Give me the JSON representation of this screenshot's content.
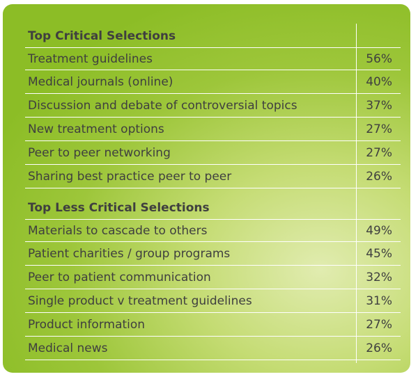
{
  "sections": [
    {
      "heading": "Top Critical Selections",
      "rows": [
        {
          "label": "Treatment guidelines",
          "value": "56%"
        },
        {
          "label": "Medical journals (online)",
          "value": "40%"
        },
        {
          "label": "Discussion and debate of controversial topics",
          "value": "37%"
        },
        {
          "label": "New treatment options",
          "value": "27%"
        },
        {
          "label": "Peer to peer networking",
          "value": "27%"
        },
        {
          "label": "Sharing best practice peer to peer",
          "value": "26%"
        }
      ]
    },
    {
      "heading": "Top Less Critical Selections",
      "rows": [
        {
          "label": "Materials to cascade to others",
          "value": "49%"
        },
        {
          "label": "Patient charities / group programs",
          "value": "45%"
        },
        {
          "label": "Peer to patient communication",
          "value": "32%"
        },
        {
          "label": "Single product v treatment guidelines",
          "value": "31%"
        },
        {
          "label": "Product information",
          "value": "27%"
        },
        {
          "label": "Medical news",
          "value": "26%"
        }
      ]
    }
  ],
  "colors": {
    "card_green": "#8cbd26",
    "text": "#3f3f3f",
    "rule": "#ffffff"
  }
}
